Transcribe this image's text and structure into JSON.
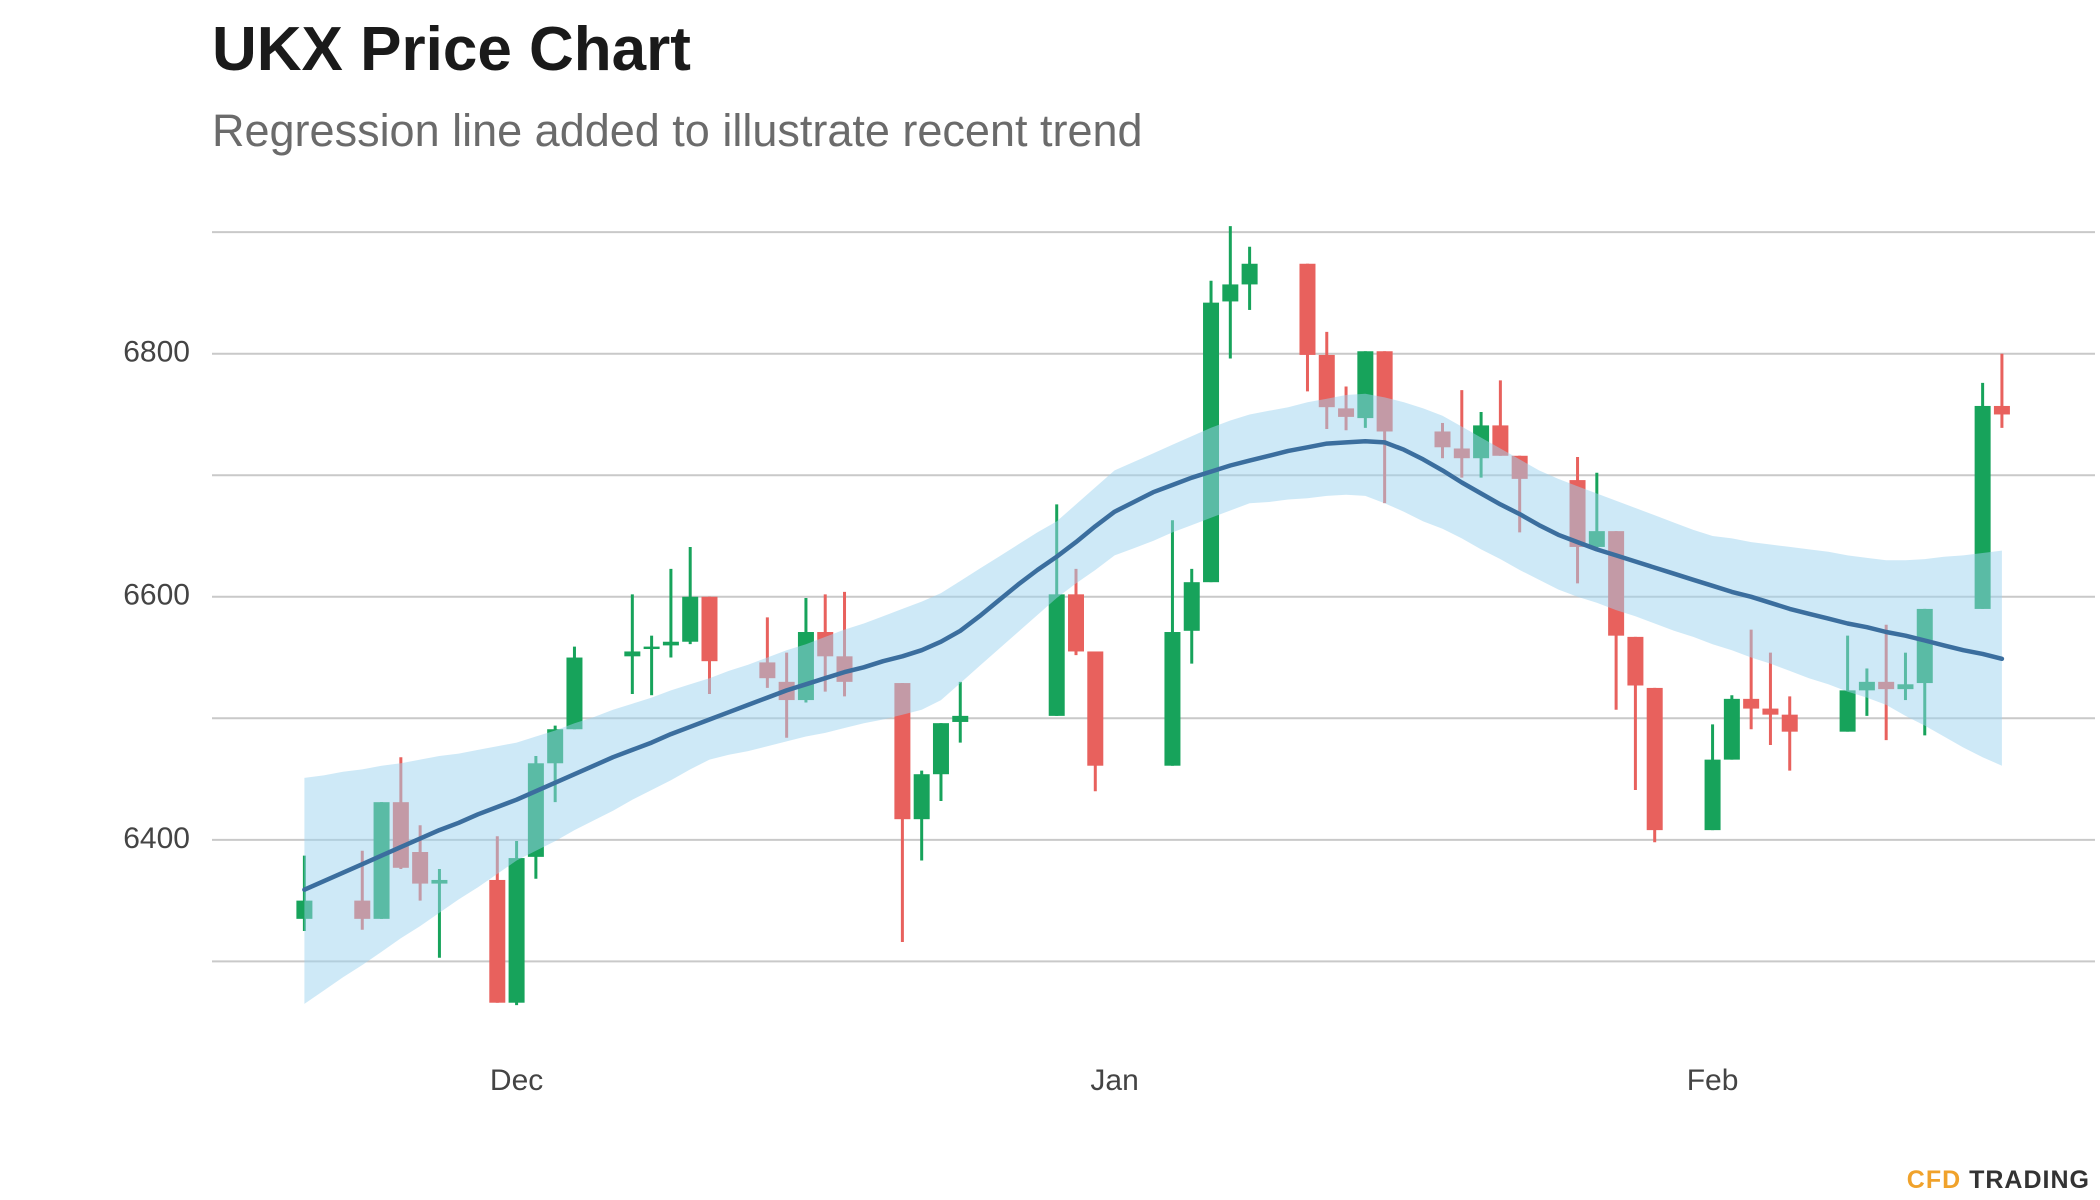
{
  "chart_data": {
    "type": "candlestick",
    "title": "UKX Price Chart",
    "subtitle": "Regression line added to illustrate recent trend",
    "brand": {
      "prefix": "CFD",
      "name": "TRADING"
    },
    "categories": [
      null,
      null,
      null,
      null,
      null,
      null,
      null,
      null,
      null,
      null,
      null,
      "Dec",
      null,
      null,
      null,
      null,
      null,
      null,
      null,
      null,
      null,
      null,
      null,
      null,
      null,
      null,
      null,
      null,
      null,
      null,
      null,
      null,
      null,
      null,
      null,
      null,
      null,
      null,
      null,
      null,
      null,
      null,
      "Jan",
      null,
      null,
      null,
      null,
      null,
      null,
      null,
      null,
      null,
      null,
      null,
      null,
      null,
      null,
      null,
      null,
      null,
      null,
      null,
      null,
      null,
      null,
      null,
      null,
      null,
      null,
      null,
      null,
      null,
      null,
      "Feb",
      null,
      null,
      null,
      null,
      null,
      null,
      null,
      null,
      null,
      null,
      null,
      null,
      null,
      null,
      null
    ],
    "open": [
      6335,
      null,
      null,
      6350,
      6335,
      6431,
      6390,
      6364,
      null,
      null,
      6367,
      6266,
      6386,
      6463,
      6491,
      null,
      null,
      6551,
      6557,
      6560,
      6563,
      6600,
      null,
      null,
      6546,
      6530,
      6515,
      6571,
      6551,
      null,
      null,
      6529,
      6417,
      6454,
      6497,
      null,
      null,
      null,
      null,
      6502,
      6602,
      6555,
      null,
      null,
      null,
      6461,
      6572,
      6612,
      6843,
      6857,
      null,
      null,
      6874,
      6799,
      6755,
      6747,
      6802,
      null,
      null,
      6736,
      6722,
      6714,
      6741,
      6716,
      null,
      null,
      6696,
      6641,
      6654,
      6567,
      6525,
      null,
      null,
      6408,
      6466,
      6516,
      6508,
      6503,
      null,
      null,
      6489,
      6523,
      6530,
      6524,
      6529,
      null,
      null,
      6590,
      6757
    ],
    "high": [
      6387,
      null,
      null,
      6391,
      6431,
      6468,
      6412,
      6376,
      null,
      null,
      6403,
      6399,
      6469,
      6494,
      6559,
      null,
      null,
      6602,
      6568,
      6623,
      6641,
      6600,
      null,
      null,
      6583,
      6554,
      6599,
      6602,
      6604,
      null,
      null,
      6529,
      6457,
      6496,
      6530,
      null,
      null,
      null,
      null,
      6676,
      6623,
      6555,
      null,
      null,
      null,
      6663,
      6623,
      6860,
      6905,
      6888,
      null,
      null,
      6874,
      6818,
      6773,
      6802,
      6802,
      null,
      null,
      6743,
      6770,
      6752,
      6778,
      6716,
      null,
      null,
      6715,
      6702,
      6654,
      6567,
      6525,
      null,
      null,
      6495,
      6519,
      6573,
      6554,
      6518,
      null,
      null,
      6568,
      6541,
      6577,
      6554,
      6590,
      null,
      null,
      6776,
      6800
    ],
    "low": [
      6325,
      null,
      null,
      6326,
      6335,
      6376,
      6350,
      6303,
      null,
      null,
      6266,
      6264,
      6368,
      6431,
      6491,
      null,
      null,
      6520,
      6519,
      6550,
      6561,
      6520,
      null,
      null,
      6525,
      6484,
      6513,
      6522,
      6518,
      null,
      null,
      6316,
      6383,
      6432,
      6480,
      null,
      null,
      null,
      null,
      6502,
      6552,
      6440,
      null,
      null,
      null,
      6461,
      6545,
      6612,
      6796,
      6836,
      null,
      null,
      6769,
      6738,
      6737,
      6739,
      6677,
      null,
      null,
      6714,
      6698,
      6698,
      6716,
      6653,
      null,
      null,
      6611,
      6638,
      6507,
      6441,
      6398,
      null,
      null,
      6408,
      6466,
      6491,
      6478,
      6457,
      null,
      null,
      6489,
      6502,
      6482,
      6515,
      6486,
      null,
      null,
      6590,
      6739
    ],
    "close": [
      6350,
      null,
      null,
      6335,
      6431,
      6377,
      6364,
      6367,
      null,
      null,
      6266,
      6385,
      6463,
      6491,
      6550,
      null,
      null,
      6555,
      6559,
      6563,
      6600,
      6547,
      null,
      null,
      6533,
      6515,
      6571,
      6551,
      6530,
      null,
      null,
      6417,
      6454,
      6496,
      6502,
      null,
      null,
      null,
      null,
      6602,
      6555,
      6461,
      null,
      null,
      null,
      6571,
      6612,
      6842,
      6857,
      6874,
      null,
      null,
      6799,
      6756,
      6748,
      6802,
      6736,
      null,
      null,
      6723,
      6714,
      6741,
      6716,
      6697,
      null,
      null,
      6641,
      6654,
      6568,
      6527,
      6408,
      null,
      null,
      6466,
      6516,
      6508,
      6503,
      6489,
      null,
      null,
      6523,
      6530,
      6524,
      6528,
      6590,
      null,
      null,
      6757,
      6750
    ],
    "up_color": "#17a35b",
    "down_color": "#e8615d",
    "regression": {
      "color": "#3b6e9e",
      "band_color": "#9dd3f0",
      "values": [
        6359,
        6366,
        6373,
        6380,
        6387,
        6394,
        6401,
        6408,
        6414,
        6421,
        6427,
        6433,
        6440,
        6447,
        6454,
        6461,
        6468,
        6474,
        6480,
        6487,
        6493,
        6499,
        6505,
        6511,
        6517,
        6523,
        6528,
        6533,
        6538,
        6542,
        6547,
        6551,
        6556,
        6563,
        6572,
        6584,
        6597,
        6610,
        6622,
        6633,
        6645,
        6658,
        6670,
        6678,
        6686,
        6692,
        6698,
        6703,
        6708,
        6712,
        6716,
        6720,
        6723,
        6726,
        6727,
        6728,
        6727,
        6721,
        6713,
        6704,
        6694,
        6685,
        6676,
        6668,
        6659,
        6651,
        6645,
        6639,
        6634,
        6629,
        6624,
        6619,
        6614,
        6609,
        6604,
        6600,
        6595,
        6590,
        6586,
        6582,
        6578,
        6575,
        6571,
        6568,
        6564,
        6560,
        6556,
        6553,
        6549
      ],
      "upper": [
        6451,
        6453,
        6456,
        6458,
        6461,
        6463,
        6466,
        6469,
        6471,
        6474,
        6477,
        6480,
        6485,
        6490,
        6496,
        6501,
        6507,
        6512,
        6517,
        6523,
        6528,
        6533,
        6539,
        6544,
        6550,
        6556,
        6561,
        6567,
        6573,
        6578,
        6584,
        6590,
        6596,
        6603,
        6613,
        6623,
        6633,
        6643,
        6653,
        6662,
        6676,
        6690,
        6704,
        6711,
        6718,
        6725,
        6732,
        6739,
        6745,
        6750,
        6753,
        6756,
        6760,
        6763,
        6766,
        6767,
        6764,
        6760,
        6755,
        6749,
        6740,
        6731,
        6722,
        6713,
        6704,
        6697,
        6691,
        6685,
        6679,
        6673,
        6667,
        6661,
        6655,
        6650,
        6648,
        6645,
        6643,
        6641,
        6639,
        6637,
        6634,
        6632,
        6630,
        6630,
        6631,
        6633,
        6634,
        6636,
        6638
      ],
      "lower": [
        6265,
        6276,
        6287,
        6297,
        6308,
        6319,
        6329,
        6340,
        6351,
        6361,
        6372,
        6383,
        6391,
        6399,
        6408,
        6416,
        6424,
        6433,
        6441,
        6449,
        6458,
        6466,
        6470,
        6473,
        6477,
        6481,
        6485,
        6488,
        6492,
        6496,
        6499,
        6503,
        6507,
        6515,
        6529,
        6543,
        6557,
        6571,
        6585,
        6599,
        6611,
        6622,
        6634,
        6640,
        6646,
        6653,
        6659,
        6665,
        6671,
        6677,
        6678,
        6680,
        6681,
        6683,
        6684,
        6683,
        6677,
        6670,
        6662,
        6656,
        6648,
        6639,
        6631,
        6622,
        6614,
        6606,
        6600,
        6595,
        6589,
        6584,
        6578,
        6572,
        6567,
        6561,
        6556,
        6550,
        6545,
        6539,
        6533,
        6528,
        6522,
        6517,
        6511,
        6502,
        6494,
        6485,
        6476,
        6468,
        6461
      ]
    },
    "ylim": [
      6260,
      6910
    ],
    "yticks": [
      6400,
      6600,
      6800
    ],
    "ygrid": [
      6300,
      6400,
      6500,
      6600,
      6700,
      6800,
      6900
    ],
    "grid": true
  }
}
